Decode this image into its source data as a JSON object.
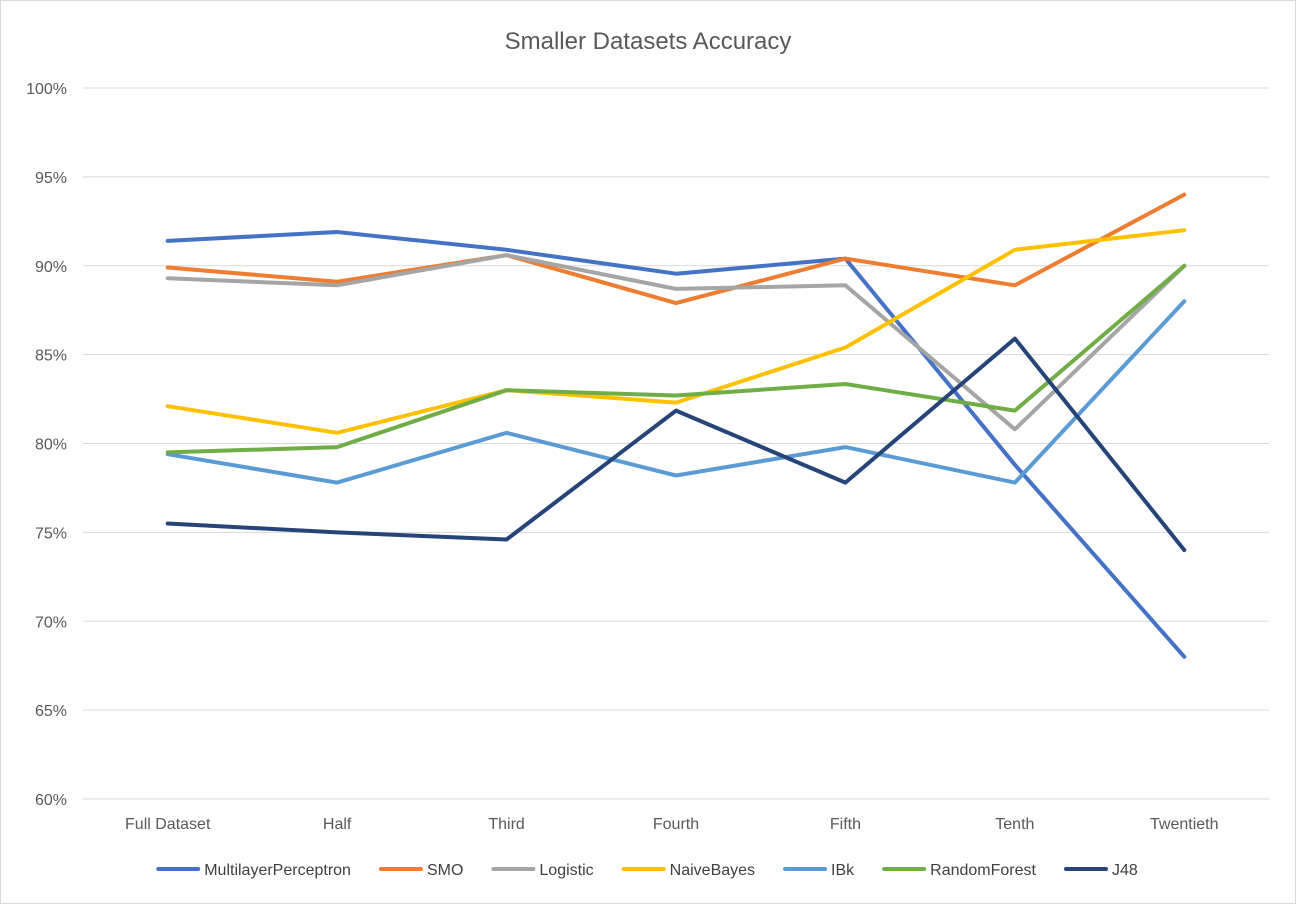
{
  "chart_data": {
    "type": "line",
    "title": "Smaller Datasets Accuracy",
    "xlabel": "",
    "ylabel": "",
    "categories": [
      "Full Dataset",
      "Half",
      "Third",
      "Fourth",
      "Fifth",
      "Tenth",
      "Twentieth"
    ],
    "ylim": [
      60,
      100
    ],
    "yticks": [
      60,
      65,
      70,
      75,
      80,
      85,
      90,
      95,
      100
    ],
    "ytick_labels": [
      "60%",
      "65%",
      "70%",
      "75%",
      "80%",
      "85%",
      "90%",
      "95%",
      "100%"
    ],
    "grid": true,
    "legend_position": "bottom",
    "series": [
      {
        "name": "MultilayerPerceptron",
        "color": "#4472C4",
        "values": [
          91.4,
          91.9,
          90.9,
          89.55,
          90.4,
          78.8,
          68.0
        ]
      },
      {
        "name": "SMO",
        "color": "#ED7D31",
        "values": [
          89.9,
          89.1,
          90.6,
          87.9,
          90.4,
          88.9,
          94.0
        ]
      },
      {
        "name": "Logistic",
        "color": "#A5A5A5",
        "values": [
          89.3,
          88.9,
          90.6,
          88.7,
          88.9,
          80.8,
          90.0
        ]
      },
      {
        "name": "NaiveBayes",
        "color": "#FFC000",
        "values": [
          82.1,
          80.6,
          83.0,
          82.3,
          85.4,
          90.9,
          92.0
        ]
      },
      {
        "name": "IBk",
        "color": "#5B9BD5",
        "values": [
          79.4,
          77.8,
          80.6,
          78.2,
          79.8,
          77.8,
          88.0
        ]
      },
      {
        "name": "RandomForest",
        "color": "#70AD47",
        "values": [
          79.5,
          79.8,
          83.0,
          82.7,
          83.35,
          81.85,
          90.0
        ]
      },
      {
        "name": "J48",
        "color": "#264478",
        "values": [
          75.5,
          75.0,
          74.6,
          81.85,
          77.8,
          85.9,
          74.0
        ]
      }
    ]
  }
}
